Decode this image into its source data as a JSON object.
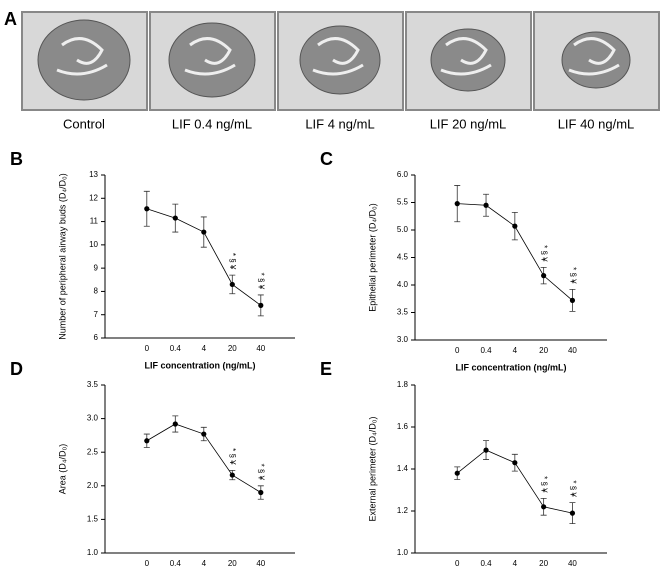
{
  "panel_a": {
    "label": "A",
    "images": [
      "Control",
      "LIF 0.4 ng/mL",
      "LIF 4 ng/mL",
      "LIF 20 ng/mL",
      "LIF 40 ng/mL"
    ]
  },
  "chart_data": [
    {
      "type": "line",
      "panel": "B",
      "categories": [
        "0",
        "0.4",
        "4",
        "20",
        "40"
      ],
      "values": [
        11.55,
        11.15,
        10.55,
        8.3,
        7.4
      ],
      "errors": [
        0.75,
        0.6,
        0.65,
        0.4,
        0.45
      ],
      "color": "#000000",
      "ylim": [
        6,
        13
      ],
      "yticks": [
        6,
        7,
        8,
        9,
        10,
        11,
        12,
        13
      ],
      "ylabel": "Number of peripheral airway buds (D₄/D₀)",
      "xlabel": "LIF concentration (ng/mL)",
      "annotations": [
        {
          "category": "20",
          "text": "* § ¥"
        },
        {
          "category": "40",
          "text": "* § ¥"
        }
      ]
    },
    {
      "type": "line",
      "panel": "C",
      "categories": [
        "0",
        "0.4",
        "4",
        "20",
        "40"
      ],
      "values": [
        5.48,
        5.45,
        5.07,
        4.17,
        3.72
      ],
      "errors": [
        0.33,
        0.2,
        0.25,
        0.15,
        0.2
      ],
      "color": "#000000",
      "ylim": [
        3,
        6
      ],
      "yticks": [
        {
          "value": 3,
          "label": "3.0"
        },
        3.5,
        {
          "value": 4,
          "label": "4.0"
        },
        4.5,
        {
          "value": 5,
          "label": "5.0"
        },
        5.5,
        {
          "value": 6,
          "label": "6.0"
        }
      ],
      "ylabel": "Epithelial perimeter (D₄/D₀)",
      "xlabel": "LIF concentration (ng/mL)",
      "annotations": [
        {
          "category": "20",
          "text": "* § ¥"
        },
        {
          "category": "40",
          "text": "* § ¥"
        }
      ]
    },
    {
      "type": "line",
      "panel": "D",
      "categories": [
        "0",
        "0.4",
        "4",
        "20",
        "40"
      ],
      "values": [
        2.67,
        2.92,
        2.77,
        2.16,
        1.9
      ],
      "errors": [
        0.1,
        0.12,
        0.1,
        0.07,
        0.1
      ],
      "color": "#000000",
      "ylim": [
        1,
        3.5
      ],
      "yticks": [
        {
          "value": 1,
          "label": "1.0"
        },
        1.5,
        {
          "value": 2,
          "label": "2.0"
        },
        2.5,
        {
          "value": 3,
          "label": "3.0"
        },
        3.5
      ],
      "ylabel": "Area (D₄/D₀)",
      "annotations": [
        {
          "category": "20",
          "text": "* § ¥"
        },
        {
          "category": "40",
          "text": "* § ¥"
        }
      ]
    },
    {
      "type": "line",
      "panel": "E",
      "categories": [
        "0",
        "0.4",
        "4",
        "20",
        "40"
      ],
      "values": [
        1.38,
        1.49,
        1.43,
        1.22,
        1.19
      ],
      "errors": [
        0.03,
        0.045,
        0.04,
        0.04,
        0.05
      ],
      "color": "#000000",
      "ylim": [
        1,
        1.8
      ],
      "yticks": [
        {
          "value": 1,
          "label": "1.0"
        },
        1.2,
        1.4,
        1.6,
        1.8
      ],
      "ylabel": "External perimeter (D₄/D₀)",
      "annotations": [
        {
          "category": "20",
          "text": "* § ¥"
        },
        {
          "category": "40",
          "text": "* § ¥"
        }
      ]
    }
  ]
}
